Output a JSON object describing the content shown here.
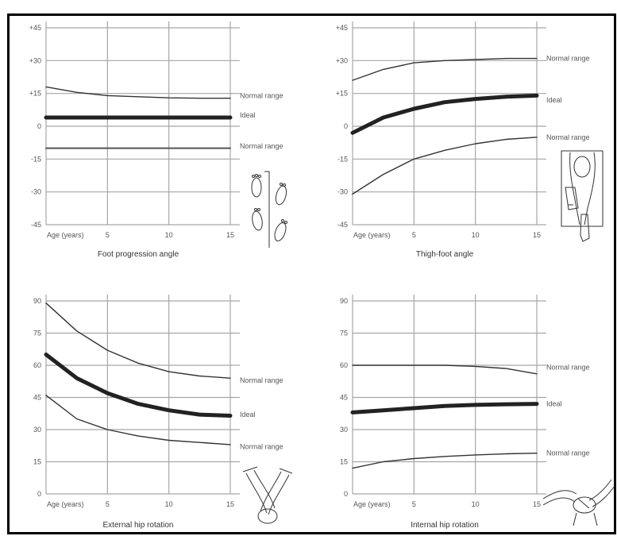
{
  "chart_data": [
    {
      "type": "line",
      "title": "Foot progression angle",
      "x_ticks": [
        "Age (years)",
        "5",
        "10",
        "15"
      ],
      "y_ticks": [
        "+45",
        "+30",
        "+15",
        "0",
        "-15",
        "-30",
        "-45"
      ],
      "xlim": [
        0,
        15
      ],
      "ylim": [
        -45,
        45
      ],
      "grid": true,
      "series": [
        {
          "name": "Normal range",
          "style": "thin",
          "x": [
            0,
            2.5,
            5,
            7.5,
            10,
            12.5,
            15
          ],
          "y": [
            18,
            15.5,
            14,
            13.5,
            13,
            12.8,
            12.8
          ]
        },
        {
          "name": "Ideal",
          "style": "thick",
          "x": [
            0,
            15
          ],
          "y": [
            4,
            4
          ]
        },
        {
          "name": "Normal range",
          "style": "medium",
          "x": [
            0,
            15
          ],
          "y": [
            -10,
            -10
          ]
        }
      ],
      "labels": [
        {
          "text": "Normal range",
          "y": 14
        },
        {
          "text": "Ideal",
          "y": 5
        },
        {
          "text": "Normal range",
          "y": -9
        }
      ],
      "illustration": "footprints-icon"
    },
    {
      "type": "line",
      "title": "Thigh-foot angle",
      "x_ticks": [
        "Age (years)",
        "5",
        "10",
        "15"
      ],
      "y_ticks": [
        "+45",
        "+30",
        "+15",
        "0",
        "-15",
        "-30",
        "-45"
      ],
      "xlim": [
        0,
        15
      ],
      "ylim": [
        -45,
        45
      ],
      "grid": true,
      "series": [
        {
          "name": "Normal range",
          "style": "thin",
          "x": [
            0,
            2.5,
            5,
            7.5,
            10,
            12.5,
            15
          ],
          "y": [
            21,
            26,
            29,
            30,
            30.5,
            31,
            31
          ]
        },
        {
          "name": "Ideal",
          "style": "thick",
          "x": [
            0,
            2.5,
            5,
            7.5,
            10,
            12.5,
            15
          ],
          "y": [
            -3,
            4,
            8,
            11,
            12.5,
            13.5,
            14
          ]
        },
        {
          "name": "Normal range",
          "style": "thin",
          "x": [
            0,
            2.5,
            5,
            7.5,
            10,
            12.5,
            15
          ],
          "y": [
            -31,
            -22,
            -15,
            -11,
            -8,
            -6,
            -5
          ]
        }
      ],
      "labels": [
        {
          "text": "Normal range",
          "y": 31
        },
        {
          "text": "Ideal",
          "y": 12
        },
        {
          "text": "Normal range",
          "y": -5
        }
      ],
      "illustration": "thigh-foot-examination-icon"
    },
    {
      "type": "line",
      "title": "External hip rotation",
      "x_ticks": [
        "Age (years)",
        "5",
        "10",
        "15"
      ],
      "y_ticks": [
        "90",
        "75",
        "60",
        "45",
        "30",
        "15",
        "0"
      ],
      "xlim": [
        0,
        15
      ],
      "ylim": [
        0,
        90
      ],
      "grid": true,
      "series": [
        {
          "name": "Normal range",
          "style": "thin",
          "x": [
            0,
            2.5,
            5,
            7.5,
            10,
            12.5,
            15
          ],
          "y": [
            89,
            76,
            67,
            61,
            57,
            55,
            54
          ]
        },
        {
          "name": "Ideal",
          "style": "thick",
          "x": [
            0,
            2.5,
            5,
            7.5,
            10,
            12.5,
            15
          ],
          "y": [
            65,
            54,
            47,
            42,
            39,
            37,
            36.5
          ]
        },
        {
          "name": "Normal range",
          "style": "thin",
          "x": [
            0,
            2.5,
            5,
            7.5,
            10,
            12.5,
            15
          ],
          "y": [
            46,
            35,
            30,
            27,
            25,
            24,
            23
          ]
        }
      ],
      "labels": [
        {
          "text": "Normal range",
          "y": 53
        },
        {
          "text": "Ideal",
          "y": 37
        },
        {
          "text": "Normal range",
          "y": 22
        }
      ],
      "illustration": "crossed-legs-icon"
    },
    {
      "type": "line",
      "title": "Internal hip rotation",
      "x_ticks": [
        "Age (years)",
        "5",
        "10",
        "15"
      ],
      "y_ticks": [
        "90",
        "75",
        "60",
        "45",
        "30",
        "15",
        "0"
      ],
      "xlim": [
        0,
        15
      ],
      "ylim": [
        0,
        90
      ],
      "grid": true,
      "series": [
        {
          "name": "Normal range",
          "style": "thin",
          "x": [
            0,
            2.5,
            5,
            7.5,
            10,
            12.5,
            15
          ],
          "y": [
            60,
            60,
            60,
            60,
            59.5,
            58.5,
            56
          ]
        },
        {
          "name": "Ideal",
          "style": "thick",
          "x": [
            0,
            2.5,
            5,
            7.5,
            10,
            12.5,
            15
          ],
          "y": [
            38,
            39,
            40,
            41,
            41.5,
            41.8,
            42
          ]
        },
        {
          "name": "Normal range",
          "style": "thin",
          "x": [
            0,
            2.5,
            5,
            7.5,
            10,
            12.5,
            15
          ],
          "y": [
            12,
            15,
            16.5,
            17.5,
            18.2,
            18.7,
            19
          ]
        }
      ],
      "labels": [
        {
          "text": "Normal range",
          "y": 59
        },
        {
          "text": "Ideal",
          "y": 42
        },
        {
          "text": "Normal range",
          "y": 19
        }
      ],
      "illustration": "prone-hip-rotation-icon"
    }
  ],
  "colors": {
    "background": "#ffffff",
    "frame": "#000000",
    "grid": "#a6a6a6",
    "curve": "#222222",
    "text": "#555555"
  }
}
